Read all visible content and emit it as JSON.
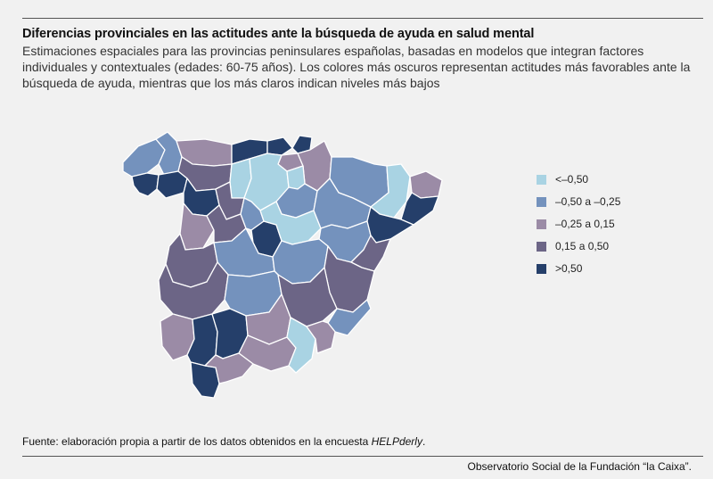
{
  "header": {
    "title": "Diferencias provinciales en las actitudes ante la búsqueda de ayuda en salud mental",
    "subtitle": "Estimaciones espaciales para las provincias peninsulares españolas, basadas en modelos que integran factores individuales y contextuales (edades: 60-75 años). Los colores más oscuros representan actitudes más favorables ante la búsqueda de ayuda, mientras que los más claros indican niveles más bajos"
  },
  "legend": [
    {
      "label": "<–0,50",
      "color": "#a9d3e3"
    },
    {
      "label": "–0,50 a –0,25",
      "color": "#7492bd"
    },
    {
      "label": "–0,25 a 0,15",
      "color": "#9b8ba6"
    },
    {
      "label": "0,15 a 0,50",
      "color": "#6c6586"
    },
    {
      "label": ">0,50",
      "color": "#253f6a"
    }
  ],
  "footer": {
    "source_prefix": "Fuente: elaboración propia a partir de los datos obtenidos en la encuesta ",
    "source_survey": "HELPderly",
    "source_suffix": ".",
    "credit": "Observatorio Social de la Fundación “la Caixa”."
  },
  "regions": [
    {
      "id": "coruna",
      "class": 1
    },
    {
      "id": "lugo",
      "class": 1
    },
    {
      "id": "pontevedra",
      "class": 4
    },
    {
      "id": "ourense",
      "class": 4
    },
    {
      "id": "asturias",
      "class": 2
    },
    {
      "id": "cantabria",
      "class": 4
    },
    {
      "id": "bizkaia",
      "class": 4
    },
    {
      "id": "gipuzkoa",
      "class": 4
    },
    {
      "id": "araba",
      "class": 2
    },
    {
      "id": "navarra",
      "class": 2
    },
    {
      "id": "leon",
      "class": 3
    },
    {
      "id": "palencia",
      "class": 0
    },
    {
      "id": "burgos",
      "class": 0
    },
    {
      "id": "larioja",
      "class": 0
    },
    {
      "id": "zamora",
      "class": 4
    },
    {
      "id": "valladolid",
      "class": 3
    },
    {
      "id": "soria",
      "class": 1
    },
    {
      "id": "salamanca",
      "class": 2
    },
    {
      "id": "avila",
      "class": 3
    },
    {
      "id": "segovia",
      "class": 1
    },
    {
      "id": "madrid",
      "class": 4
    },
    {
      "id": "guadalajara",
      "class": 0
    },
    {
      "id": "huesca",
      "class": 1
    },
    {
      "id": "zaragoza",
      "class": 1
    },
    {
      "id": "teruel",
      "class": 1
    },
    {
      "id": "lleida",
      "class": 0
    },
    {
      "id": "girona",
      "class": 2
    },
    {
      "id": "barcelona",
      "class": 4
    },
    {
      "id": "tarragona",
      "class": 4
    },
    {
      "id": "caceres",
      "class": 3
    },
    {
      "id": "toledo",
      "class": 1
    },
    {
      "id": "cuenca",
      "class": 1
    },
    {
      "id": "castellon",
      "class": 3
    },
    {
      "id": "valencia",
      "class": 3
    },
    {
      "id": "badajoz",
      "class": 3
    },
    {
      "id": "ciudadreal",
      "class": 1
    },
    {
      "id": "albacete",
      "class": 3
    },
    {
      "id": "alicante",
      "class": 1
    },
    {
      "id": "huelva",
      "class": 2
    },
    {
      "id": "sevilla",
      "class": 4
    },
    {
      "id": "cordoba",
      "class": 4
    },
    {
      "id": "jaen",
      "class": 2
    },
    {
      "id": "granada",
      "class": 2
    },
    {
      "id": "almeria",
      "class": 0
    },
    {
      "id": "murcia",
      "class": 2
    },
    {
      "id": "cadiz",
      "class": 4
    },
    {
      "id": "malaga",
      "class": 2
    }
  ]
}
